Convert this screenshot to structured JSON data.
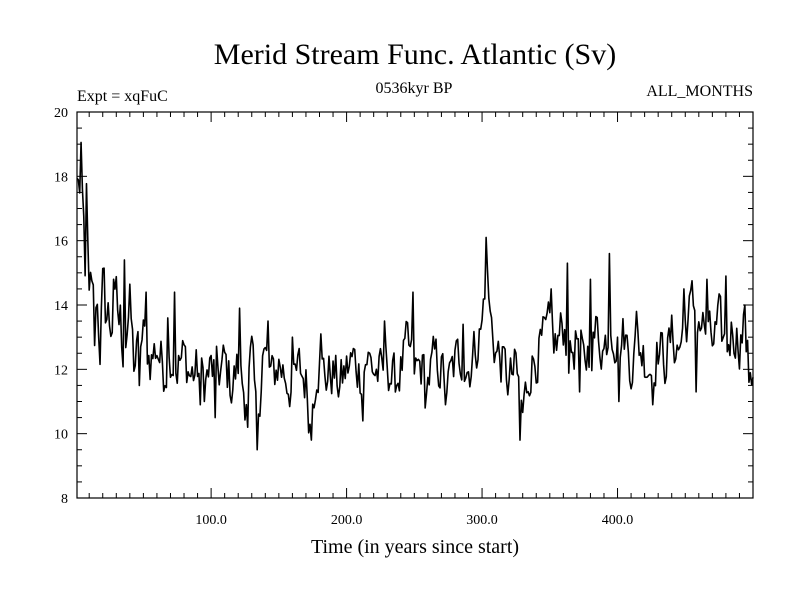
{
  "chart_data": {
    "type": "line",
    "title": "Merid Stream Func. Atlantic (Sv)",
    "left_label": "Expt = xqFuC",
    "center_label": "0536kyr BP",
    "right_label": "ALL_MONTHS",
    "xlabel": "Time (in years since start)",
    "ylabel": "",
    "xlim": [
      1,
      500
    ],
    "ylim": [
      8,
      20
    ],
    "xticks": [
      100,
      200,
      300,
      400
    ],
    "xtick_labels": [
      "100.0",
      "200.0",
      "300.0",
      "400.0"
    ],
    "yticks": [
      8,
      10,
      12,
      14,
      16,
      18,
      20
    ],
    "ytick_labels": [
      "8",
      "10",
      "12",
      "14",
      "16",
      "18",
      "20"
    ],
    "series": [
      {
        "name": "Merid Stream Func. Atlantic",
        "anchors": [
          [
            1,
            17.6
          ],
          [
            2,
            18.2
          ],
          [
            3,
            17.3
          ],
          [
            4,
            17.9
          ],
          [
            5,
            16.8
          ],
          [
            7,
            15.4
          ],
          [
            8,
            17.1
          ],
          [
            10,
            13.5
          ],
          [
            12,
            14.8
          ],
          [
            14,
            13.2
          ],
          [
            16,
            14.6
          ],
          [
            18,
            13.0
          ],
          [
            20,
            14.2
          ],
          [
            25,
            13.5
          ],
          [
            30,
            13.8
          ],
          [
            35,
            13.0
          ],
          [
            40,
            14.0
          ],
          [
            43,
            12.2
          ],
          [
            45,
            12.4
          ],
          [
            50,
            13.0
          ],
          [
            55,
            12.3
          ],
          [
            60,
            12.7
          ],
          [
            65,
            12.0
          ],
          [
            70,
            12.5
          ],
          [
            75,
            12.1
          ],
          [
            80,
            12.4
          ],
          [
            85,
            11.8
          ],
          [
            90,
            12.0
          ],
          [
            95,
            11.6
          ],
          [
            100,
            12.0
          ],
          [
            105,
            11.8
          ],
          [
            110,
            12.2
          ],
          [
            115,
            11.5
          ],
          [
            120,
            12.1
          ],
          [
            125,
            11.2
          ],
          [
            130,
            12.4
          ],
          [
            134,
            10.0
          ],
          [
            138,
            12.6
          ],
          [
            145,
            11.7
          ],
          [
            150,
            12.2
          ],
          [
            155,
            11.8
          ],
          [
            160,
            11.4
          ],
          [
            165,
            12.0
          ],
          [
            170,
            11.6
          ],
          [
            173,
            10.4
          ],
          [
            178,
            12.2
          ],
          [
            185,
            11.8
          ],
          [
            190,
            11.9
          ],
          [
            195,
            11.5
          ],
          [
            200,
            12.0
          ],
          [
            205,
            12.3
          ],
          [
            210,
            11.9
          ],
          [
            215,
            12.4
          ],
          [
            220,
            12.0
          ],
          [
            225,
            11.8
          ],
          [
            230,
            12.2
          ],
          [
            235,
            11.6
          ],
          [
            240,
            12.0
          ],
          [
            245,
            12.7
          ],
          [
            250,
            11.9
          ],
          [
            255,
            12.1
          ],
          [
            260,
            11.7
          ],
          [
            265,
            12.3
          ],
          [
            270,
            12.0
          ],
          [
            275,
            11.5
          ],
          [
            280,
            12.2
          ],
          [
            285,
            12.5
          ],
          [
            290,
            12.0
          ],
          [
            295,
            12.7
          ],
          [
            300,
            13.3
          ],
          [
            303,
            15.4
          ],
          [
            306,
            13.6
          ],
          [
            310,
            12.6
          ],
          [
            315,
            12.2
          ],
          [
            320,
            11.6
          ],
          [
            325,
            12.0
          ],
          [
            330,
            10.6
          ],
          [
            335,
            12.0
          ],
          [
            340,
            12.4
          ],
          [
            345,
            12.8
          ],
          [
            350,
            13.2
          ],
          [
            355,
            12.7
          ],
          [
            360,
            13.4
          ],
          [
            365,
            12.4
          ],
          [
            370,
            12.9
          ],
          [
            375,
            12.1
          ],
          [
            380,
            12.8
          ],
          [
            385,
            13.2
          ],
          [
            390,
            12.6
          ],
          [
            395,
            13.6
          ],
          [
            400,
            12.7
          ],
          [
            405,
            13.1
          ],
          [
            410,
            12.2
          ],
          [
            415,
            12.8
          ],
          [
            420,
            12.4
          ],
          [
            425,
            12.0
          ],
          [
            430,
            12.7
          ],
          [
            435,
            12.3
          ],
          [
            440,
            13.0
          ],
          [
            445,
            12.6
          ],
          [
            450,
            13.4
          ],
          [
            455,
            14.0
          ],
          [
            460,
            13.6
          ],
          [
            465,
            13.2
          ],
          [
            470,
            12.8
          ],
          [
            475,
            13.4
          ],
          [
            480,
            12.6
          ],
          [
            485,
            13.3
          ],
          [
            490,
            12.9
          ],
          [
            494,
            13.3
          ],
          [
            497,
            11.8
          ],
          [
            500,
            12.0
          ]
        ],
        "spikes": [
          [
            17,
            13.0
          ],
          [
            28,
            14.8
          ],
          [
            36,
            15.4
          ],
          [
            47,
            11.5
          ],
          [
            52,
            14.4
          ],
          [
            68,
            13.6
          ],
          [
            73,
            14.4
          ],
          [
            92,
            10.9
          ],
          [
            103,
            10.5
          ],
          [
            121,
            13.9
          ],
          [
            127,
            10.2
          ],
          [
            134,
            9.5
          ],
          [
            142,
            13.5
          ],
          [
            160,
            13.0
          ],
          [
            174,
            9.8
          ],
          [
            181,
            13.1
          ],
          [
            212,
            10.4
          ],
          [
            228,
            13.5
          ],
          [
            249,
            14.4
          ],
          [
            258,
            10.8
          ],
          [
            273,
            10.9
          ],
          [
            286,
            13.4
          ],
          [
            303,
            16.1
          ],
          [
            328,
            9.8
          ],
          [
            351,
            14.5
          ],
          [
            363,
            15.3
          ],
          [
            372,
            11.3
          ],
          [
            380,
            14.8
          ],
          [
            394,
            15.6
          ],
          [
            401,
            11.0
          ],
          [
            414,
            13.8
          ],
          [
            426,
            10.9
          ],
          [
            449,
            14.5
          ],
          [
            458,
            11.3
          ],
          [
            466,
            14.8
          ],
          [
            480,
            14.9
          ],
          [
            494,
            14.0
          ],
          [
            497,
            11.6
          ]
        ]
      }
    ]
  }
}
